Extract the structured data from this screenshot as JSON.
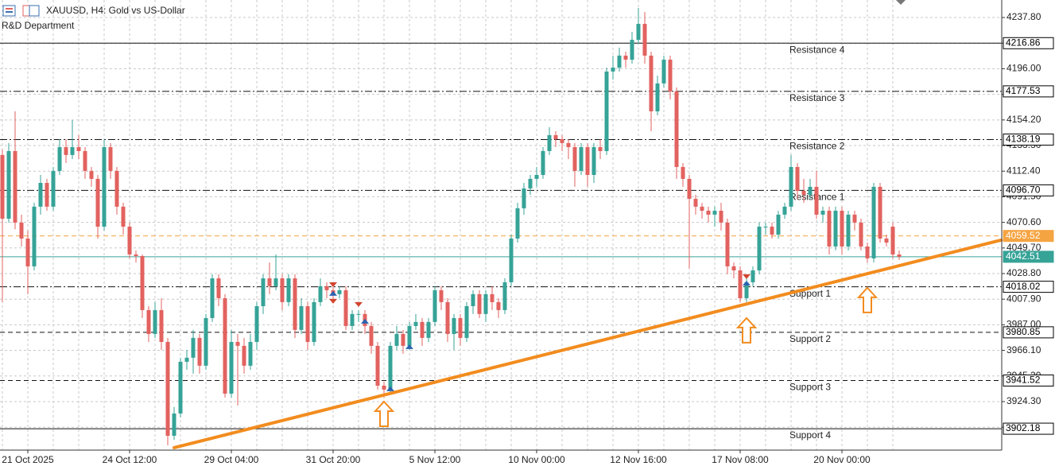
{
  "chart_data": {
    "type": "candlestick",
    "title": "XAUUSD, H4:  Gold vs US-Dollar",
    "subtitle": "R&D Department",
    "categories": [
      null,
      null,
      null,
      null,
      "21 Oct 2025",
      null,
      null,
      null,
      null,
      null,
      null,
      null,
      null,
      null,
      null,
      null,
      null,
      null,
      null,
      null,
      "24 Oct 12:00",
      null,
      null,
      null,
      null,
      null,
      null,
      null,
      null,
      null,
      null,
      null,
      null,
      null,
      null,
      null,
      "29 Oct 04:00",
      null,
      null,
      null,
      null,
      null,
      null,
      null,
      null,
      null,
      null,
      null,
      null,
      null,
      null,
      null,
      "31 Oct 20:00",
      null,
      null,
      null,
      null,
      null,
      null,
      null,
      null,
      null,
      null,
      null,
      null,
      null,
      null,
      null,
      "5 Nov 12:00",
      null,
      null,
      null,
      null,
      null,
      null,
      null,
      null,
      null,
      null,
      null,
      null,
      null,
      null,
      null,
      "10 Nov 00:00",
      null,
      null,
      null,
      null,
      null,
      null,
      null,
      null,
      null,
      null,
      null,
      null,
      null,
      null,
      null,
      "12 Nov 16:00",
      null,
      null,
      null,
      null,
      null,
      null,
      null,
      null,
      null,
      null,
      null,
      null,
      null,
      null,
      null,
      "17 Nov 08:00",
      null,
      null,
      null,
      null,
      null,
      null,
      null,
      null,
      null,
      null,
      null,
      null,
      null,
      null,
      null,
      "20 Nov 00:00",
      null,
      null,
      null,
      null,
      null,
      null,
      null,
      null,
      null
    ],
    "open": [
      4125.6,
      4073.6,
      4128.8,
      4070.4,
      4057.4,
      4034.7,
      4083.4,
      4102.8,
      4083.4,
      4112.6,
      4132.0,
      4125.6,
      4132.0,
      4128.8,
      4112.6,
      4106.1,
      4067.1,
      4132.0,
      4112.6,
      4083.4,
      4067.1,
      4044.4,
      4043.1,
      3999.0,
      3979.5,
      3999.0,
      3973.0,
      3896.4,
      3914.6,
      3956.8,
      3960.1,
      3976.3,
      3953.6,
      3992.5,
      4024.9,
      4008.7,
      3930.8,
      3973.0,
      3969.8,
      3953.6,
      3973.0,
      4002.2,
      4024.9,
      4018.5,
      4024.9,
      4005.5,
      4024.9,
      3982.8,
      4002.2,
      3973.0,
      4005.5,
      4018.5,
      4015.2,
      4012.0,
      4015.2,
      3986.0,
      3995.8,
      3995.8,
      3986.0,
      3969.8,
      3937.3,
      3934.1,
      3969.8,
      3979.5,
      3969.8,
      3986.0,
      3989.3,
      3976.3,
      3989.3,
      4015.2,
      4005.5,
      3979.5,
      3992.5,
      3976.3,
      4002.2,
      4012.0,
      3995.8,
      4012.0,
      4005.5,
      3999.0,
      4021.7,
      4057.4,
      4082.1,
      4098.3,
      4106.1,
      4109.3,
      4128.8,
      4141.8,
      4138.5,
      4135.3,
      4132.0,
      4112.6,
      4132.0,
      4109.3,
      4132.0,
      4128.8,
      4193.7,
      4196.9,
      4206.7,
      4203.4,
      4219.6,
      4232.6,
      4206.7,
      4161.2,
      4184.0,
      4203.4,
      4177.5,
      4115.8,
      4106.1,
      4089.8,
      4083.4,
      4080.1,
      4076.9,
      4080.1,
      4070.4,
      4034.7,
      4031.4,
      4008.7,
      4021.7,
      4031.4,
      4067.1,
      4067.1,
      4060.6,
      4076.9,
      4083.4,
      4115.8,
      4096.3,
      4093.1,
      4099.6,
      4076.9,
      4080.1,
      4050.9,
      4080.1,
      4050.9,
      4076.9,
      4070.4,
      4050.9,
      4041.2,
      4099.6,
      4057.4,
      4067.1,
      4044.4
    ],
    "high": [
      4130.0,
      4135.3,
      4161.2,
      4076.9,
      4063.9,
      4086.6,
      4109.3,
      4106.1,
      4115.8,
      4138.5,
      4138.5,
      4154.2,
      4141.8,
      4132.0,
      4115.8,
      4109.3,
      4138.5,
      4135.3,
      4115.8,
      4086.6,
      4070.4,
      4047.7,
      4044.4,
      4002.2,
      4005.5,
      4008.7,
      3976.3,
      3920.0,
      3960.1,
      3966.5,
      3982.8,
      3979.5,
      3995.8,
      4028.2,
      4028.2,
      4012.0,
      3982.8,
      3979.5,
      3976.3,
      3979.5,
      4005.5,
      4028.2,
      4037.9,
      4044.4,
      4028.2,
      4028.2,
      4028.2,
      4008.7,
      4005.5,
      4008.7,
      4024.9,
      4021.7,
      4018.5,
      4018.5,
      4018.5,
      3999.0,
      3999.0,
      3999.0,
      3989.3,
      3973.0,
      3940.6,
      3973.0,
      3986.0,
      3982.8,
      3989.3,
      3995.8,
      3992.5,
      3992.5,
      4018.5,
      4018.5,
      4008.7,
      3995.8,
      3995.8,
      4005.5,
      4015.2,
      4015.2,
      4015.2,
      4018.5,
      4008.7,
      4024.9,
      4060.6,
      4086.6,
      4102.8,
      4109.3,
      4115.8,
      4132.0,
      4148.3,
      4145.0,
      4141.8,
      4138.5,
      4135.3,
      4135.3,
      4135.3,
      4135.3,
      4138.5,
      4196.9,
      4206.7,
      4213.2,
      4209.9,
      4226.1,
      4245.6,
      4242.4,
      4209.9,
      4190.4,
      4206.7,
      4206.7,
      4180.7,
      4119.0,
      4109.3,
      4093.1,
      4086.6,
      4083.4,
      4083.4,
      4086.6,
      4073.6,
      4037.9,
      4034.7,
      4024.9,
      4034.7,
      4070.4,
      4070.4,
      4070.4,
      4080.1,
      4086.6,
      4125.6,
      4119.0,
      4106.1,
      4106.1,
      4112.6,
      4083.4,
      4083.4,
      4083.4,
      4083.4,
      4080.1,
      4080.1,
      4073.6,
      4054.1,
      4102.8,
      4102.8,
      4060.6,
      4070.4,
      4047.7
    ],
    "low": [
      4005.5,
      4070.4,
      4065.0,
      4050.9,
      4012.0,
      4031.4,
      4076.9,
      4080.1,
      4080.1,
      4109.3,
      4119.0,
      4122.3,
      4122.3,
      4106.1,
      4099.6,
      4057.4,
      4063.9,
      4106.1,
      4076.9,
      4060.6,
      4041.2,
      4037.9,
      3992.5,
      3973.0,
      3976.3,
      3966.5,
      3888.6,
      3893.1,
      3911.4,
      3950.3,
      3947.1,
      3947.1,
      3950.3,
      3989.3,
      4002.2,
      3927.6,
      3927.6,
      3921.1,
      3947.1,
      3950.3,
      3966.5,
      3995.8,
      4012.0,
      4015.2,
      3999.0,
      4002.2,
      3976.3,
      3979.5,
      3966.5,
      3969.8,
      4002.2,
      4008.7,
      4005.5,
      4008.7,
      3982.8,
      3982.8,
      3989.3,
      3979.5,
      3963.3,
      3934.1,
      3927.6,
      3930.8,
      3966.5,
      3963.3,
      3966.5,
      3982.8,
      3969.8,
      3973.0,
      3986.0,
      3999.0,
      3973.0,
      3966.5,
      3969.8,
      3973.0,
      3995.8,
      3992.5,
      3989.3,
      3999.0,
      3992.5,
      3995.8,
      4018.5,
      4054.1,
      4076.9,
      4093.1,
      4099.6,
      4106.1,
      4125.6,
      4132.0,
      4128.8,
      4122.3,
      4099.6,
      4109.3,
      4099.6,
      4102.8,
      4122.3,
      4125.6,
      4187.2,
      4193.7,
      4196.9,
      4200.2,
      4216.4,
      4200.2,
      4145.0,
      4158.0,
      4180.7,
      4171.0,
      4106.1,
      4099.6,
      4033.0,
      4076.9,
      4073.6,
      4070.4,
      4067.1,
      4063.9,
      4028.2,
      4024.9,
      4005.5,
      4005.5,
      4018.5,
      4028.2,
      4060.6,
      4057.4,
      4057.4,
      4073.6,
      4080.1,
      4089.8,
      4086.6,
      4089.8,
      4073.6,
      4070.4,
      4044.4,
      4047.7,
      4044.4,
      4047.7,
      4063.9,
      4047.7,
      4037.9,
      4037.9,
      4054.1,
      4050.9,
      4041.2,
      4040.0
    ],
    "close": [
      4073.6,
      4128.8,
      4070.4,
      4057.4,
      4034.7,
      4083.4,
      4102.8,
      4083.4,
      4112.6,
      4132.0,
      4125.6,
      4132.0,
      4128.8,
      4112.6,
      4106.1,
      4067.1,
      4132.0,
      4112.6,
      4083.4,
      4067.1,
      4044.4,
      4043.1,
      3999.0,
      3979.5,
      3999.0,
      3973.0,
      3896.4,
      3914.6,
      3956.8,
      3960.1,
      3976.3,
      3953.6,
      3992.5,
      4024.9,
      4008.7,
      3930.8,
      3973.0,
      3969.8,
      3953.6,
      3973.0,
      4002.2,
      4024.9,
      4018.5,
      4024.9,
      4005.5,
      4024.9,
      3982.8,
      4002.2,
      3973.0,
      4005.5,
      4018.5,
      4015.2,
      4012.0,
      4015.2,
      3986.0,
      3995.8,
      3995.8,
      3986.0,
      3969.8,
      3937.3,
      3934.1,
      3969.8,
      3979.5,
      3969.8,
      3986.0,
      3989.3,
      3976.3,
      3989.3,
      4015.2,
      4005.5,
      3979.5,
      3992.5,
      3976.3,
      4002.2,
      4012.0,
      3995.8,
      4012.0,
      4005.5,
      3999.0,
      4021.7,
      4057.4,
      4082.1,
      4098.3,
      4106.1,
      4109.3,
      4128.8,
      4141.8,
      4138.5,
      4135.3,
      4132.0,
      4112.6,
      4132.0,
      4109.3,
      4132.0,
      4128.8,
      4193.7,
      4196.9,
      4206.7,
      4203.4,
      4219.6,
      4232.6,
      4206.7,
      4161.2,
      4184.0,
      4203.4,
      4177.5,
      4115.8,
      4106.1,
      4089.8,
      4083.4,
      4080.1,
      4076.9,
      4080.1,
      4070.4,
      4034.7,
      4031.4,
      4008.7,
      4021.7,
      4031.4,
      4067.1,
      4067.1,
      4060.6,
      4076.9,
      4083.4,
      4115.8,
      4096.3,
      4093.1,
      4099.6,
      4076.9,
      4080.1,
      4050.9,
      4080.1,
      4050.9,
      4076.9,
      4070.4,
      4050.9,
      4041.2,
      4099.6,
      4057.4,
      4054.1,
      4044.4,
      4042.51
    ],
    "up_color": "#36a397",
    "down_color": "#e2625f",
    "ylim": [
      3884.7,
      4252.1
    ],
    "yticks": [
      {
        "value": 3903.4,
        "label": "3903.40"
      },
      {
        "value": 3924.3,
        "label": "3924.30"
      },
      {
        "value": 3945.2,
        "label": "3945.20"
      },
      {
        "value": 3966.1,
        "label": "3966.10"
      },
      {
        "value": 3987.0,
        "label": "3987.00"
      },
      {
        "value": 4007.9,
        "label": "4007.90"
      },
      {
        "value": 4028.8,
        "label": "4028.80"
      },
      {
        "value": 4049.7,
        "label": "4049.70"
      },
      {
        "value": 4070.6,
        "label": "4070.60"
      },
      {
        "value": 4091.5,
        "label": "4091.50"
      },
      {
        "value": 4112.4,
        "label": "4112.40"
      },
      {
        "value": 4133.3,
        "label": "4133.30"
      },
      {
        "value": 4154.2,
        "label": "4154.20"
      },
      {
        "value": 4175.1,
        "label": "4175.10"
      },
      {
        "value": 4196.0,
        "label": "4196.00"
      },
      {
        "value": 4216.9,
        "label": "4216.90"
      },
      {
        "value": 4237.8,
        "label": "4237.80"
      }
    ],
    "grid": true,
    "levels": [
      {
        "name": "Resistance 4",
        "value": 4216.86,
        "style": "solid"
      },
      {
        "name": "Resistance 3",
        "value": 4177.53,
        "style": "dashdot"
      },
      {
        "name": "Resistance 2",
        "value": 4138.19,
        "style": "dashdot"
      },
      {
        "name": "Resistance 1",
        "value": 4096.7,
        "value_label": "4096.70",
        "style": "dashdot"
      },
      {
        "name": "Support 1",
        "value": 4018.02,
        "style": "dashdot"
      },
      {
        "name": "Support 2",
        "value": 3980.85,
        "style": "dashed"
      },
      {
        "name": "Support 3",
        "value": 3941.52,
        "style": "dashed"
      },
      {
        "name": "Support 4",
        "value": 3902.18,
        "style": "solid"
      }
    ],
    "price_lines": [
      {
        "value": 4059.52,
        "color": "#f5a442",
        "style": "dashed"
      },
      {
        "value": 4042.51,
        "color": "#36a397",
        "style": "solid"
      }
    ],
    "trendline": {
      "x": [
        27,
        157
      ],
      "y": [
        3886.7,
        4056.1
      ],
      "color": "#f28c1e"
    },
    "arrows": [
      {
        "x": 60,
        "y": 3924.3
      },
      {
        "x": 117,
        "y": 3992.5
      },
      {
        "x": 136,
        "y": 4017.2
      }
    ],
    "arrow_color": "#f28c1e",
    "signals": [
      {
        "x": 52,
        "y": 4012.0,
        "kind": "buy"
      },
      {
        "x": 57,
        "y": 3989.3,
        "kind": "buy"
      },
      {
        "x": 61,
        "y": 3934.1,
        "kind": "buy"
      },
      {
        "x": 64,
        "y": 3968.5,
        "kind": "buy"
      },
      {
        "x": 117,
        "y": 4020.4,
        "kind": "buy"
      },
      {
        "x": 52,
        "y": 4020.4,
        "kind": "sell"
      },
      {
        "x": 52,
        "y": 4006.8,
        "kind": "sell"
      },
      {
        "x": 56,
        "y": 4004.2,
        "kind": "sell"
      },
      {
        "x": 117,
        "y": 4026.9,
        "kind": "sell"
      }
    ]
  }
}
